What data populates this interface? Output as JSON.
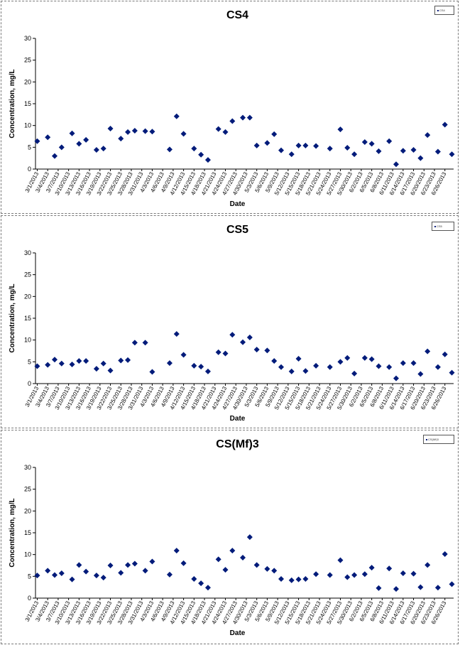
{
  "chart_data": [
    {
      "type": "scatter",
      "title": "CS4",
      "xlabel": "Date",
      "ylabel": "Concentration, mg/L",
      "ylim": [
        0,
        30
      ],
      "yticks": [
        "0",
        "5",
        "10",
        "15",
        "20",
        "25",
        "30"
      ],
      "xticks": [
        "3/1/2013",
        "3/4/2013",
        "3/7/2013",
        "3/10/2013",
        "3/13/2013",
        "3/16/2013",
        "3/19/2013",
        "3/22/2013",
        "3/25/2013",
        "3/28/2013",
        "3/31/2013",
        "4/3/2013",
        "4/6/2013",
        "4/9/2013",
        "4/12/2013",
        "4/15/2013",
        "4/18/2013",
        "4/21/2013",
        "4/24/2013",
        "4/27/2013",
        "4/30/2013",
        "5/3/2013",
        "5/6/2013",
        "5/9/2013",
        "5/12/2013",
        "5/15/2013",
        "5/18/2013",
        "5/21/2013",
        "5/24/2013",
        "5/27/2013",
        "5/30/2013",
        "6/2/2013",
        "6/5/2013",
        "6/8/2013",
        "6/11/2013",
        "6/14/2013",
        "6/17/2013",
        "6/20/2013",
        "6/23/2013",
        "6/26/2013"
      ],
      "legend": "CS4",
      "legend_position": "top-right",
      "grid": false,
      "marker_color": "#001b7a",
      "points": [
        [
          0,
          6.4
        ],
        [
          3,
          7.3
        ],
        [
          5,
          3.0
        ],
        [
          7,
          5.0
        ],
        [
          10,
          8.2
        ],
        [
          12,
          5.8
        ],
        [
          14,
          6.7
        ],
        [
          17,
          4.4
        ],
        [
          19,
          4.7
        ],
        [
          21,
          9.3
        ],
        [
          24,
          7.0
        ],
        [
          26,
          8.5
        ],
        [
          28,
          8.8
        ],
        [
          31,
          8.7
        ],
        [
          33,
          8.6
        ],
        [
          38,
          4.5
        ],
        [
          40,
          12.1
        ],
        [
          42,
          8.1
        ],
        [
          45,
          4.7
        ],
        [
          47,
          3.3
        ],
        [
          49,
          2.1
        ],
        [
          52,
          9.2
        ],
        [
          54,
          8.5
        ],
        [
          56,
          11.0
        ],
        [
          59,
          11.8
        ],
        [
          61,
          11.8
        ],
        [
          63,
          5.4
        ],
        [
          66,
          6.0
        ],
        [
          68,
          8.0
        ],
        [
          70,
          4.3
        ],
        [
          73,
          3.4
        ],
        [
          75,
          5.4
        ],
        [
          77,
          5.4
        ],
        [
          80,
          5.3
        ],
        [
          84,
          4.7
        ],
        [
          87,
          9.1
        ],
        [
          89,
          4.9
        ],
        [
          91,
          3.4
        ],
        [
          94,
          6.2
        ],
        [
          96,
          5.8
        ],
        [
          98,
          4.1
        ],
        [
          101,
          6.4
        ],
        [
          103,
          1.1
        ],
        [
          105,
          4.2
        ],
        [
          108,
          4.4
        ],
        [
          110,
          2.5
        ],
        [
          112,
          7.8
        ],
        [
          115,
          4.0
        ],
        [
          117,
          10.2
        ],
        [
          119,
          3.4
        ]
      ]
    },
    {
      "type": "scatter",
      "title": "CS5",
      "xlabel": "Date",
      "ylabel": "Concentration, mg/L",
      "ylim": [
        0,
        30
      ],
      "yticks": [
        "0",
        "5",
        "10",
        "15",
        "20",
        "25",
        "30"
      ],
      "xticks": [
        "3/1/2013",
        "3/4/2013",
        "3/7/2013",
        "3/10/2013",
        "3/13/2013",
        "3/16/2013",
        "3/19/2013",
        "3/22/2013",
        "3/25/2013",
        "3/28/2013",
        "3/31/2013",
        "4/3/2013",
        "4/6/2013",
        "4/9/2013",
        "4/12/2013",
        "4/15/2013",
        "4/18/2013",
        "4/21/2013",
        "4/24/2013",
        "4/27/2013",
        "4/30/2013",
        "5/3/2013",
        "5/6/2013",
        "5/9/2013",
        "5/12/2013",
        "5/15/2013",
        "5/18/2013",
        "5/21/2013",
        "5/24/2013",
        "5/27/2013",
        "5/30/2013",
        "6/2/2013",
        "6/5/2013",
        "6/8/2013",
        "6/11/2013",
        "6/14/2013",
        "6/17/2013",
        "6/20/2013",
        "6/23/2013",
        "6/26/2013"
      ],
      "legend": "CS5",
      "legend_position": "top-right",
      "grid": false,
      "marker_color": "#001b7a",
      "points": [
        [
          0,
          4.0
        ],
        [
          3,
          4.3
        ],
        [
          5,
          5.5
        ],
        [
          7,
          4.6
        ],
        [
          10,
          4.4
        ],
        [
          12,
          5.2
        ],
        [
          14,
          5.2
        ],
        [
          17,
          3.4
        ],
        [
          19,
          4.6
        ],
        [
          21,
          3.0
        ],
        [
          24,
          5.3
        ],
        [
          26,
          5.4
        ],
        [
          28,
          9.4
        ],
        [
          31,
          9.4
        ],
        [
          33,
          2.7
        ],
        [
          38,
          4.7
        ],
        [
          40,
          11.4
        ],
        [
          42,
          6.6
        ],
        [
          45,
          4.1
        ],
        [
          47,
          3.9
        ],
        [
          49,
          2.8
        ],
        [
          52,
          7.2
        ],
        [
          54,
          6.9
        ],
        [
          56,
          11.2
        ],
        [
          59,
          9.5
        ],
        [
          61,
          10.6
        ],
        [
          63,
          7.8
        ],
        [
          66,
          7.6
        ],
        [
          68,
          5.2
        ],
        [
          70,
          3.8
        ],
        [
          73,
          2.8
        ],
        [
          75,
          5.7
        ],
        [
          77,
          2.9
        ],
        [
          80,
          4.1
        ],
        [
          84,
          3.8
        ],
        [
          87,
          5.0
        ],
        [
          89,
          5.9
        ],
        [
          91,
          2.3
        ],
        [
          94,
          5.9
        ],
        [
          96,
          5.6
        ],
        [
          98,
          4.0
        ],
        [
          101,
          3.8
        ],
        [
          103,
          1.2
        ],
        [
          105,
          4.7
        ],
        [
          108,
          4.7
        ],
        [
          110,
          2.2
        ],
        [
          112,
          7.4
        ],
        [
          115,
          3.8
        ],
        [
          117,
          6.7
        ],
        [
          119,
          2.5
        ]
      ]
    },
    {
      "type": "scatter",
      "title": "CS(Mf)3",
      "xlabel": "Date",
      "ylabel": "Concentration, mg/L",
      "ylim": [
        0,
        30
      ],
      "yticks": [
        "0",
        "5",
        "10",
        "15",
        "20",
        "25",
        "30"
      ],
      "xticks": [
        "3/1/2013",
        "3/4/2013",
        "3/7/2013",
        "3/10/2013",
        "3/13/2013",
        "3/16/2013",
        "3/19/2013",
        "3/22/2013",
        "3/25/2013",
        "3/28/2013",
        "3/31/2013",
        "4/3/2013",
        "4/6/2013",
        "4/9/2013",
        "4/12/2013",
        "4/15/2013",
        "4/18/2013",
        "4/21/2013",
        "4/24/2013",
        "4/27/2013",
        "4/30/2013",
        "5/3/2013",
        "5/6/2013",
        "5/9/2013",
        "5/12/2013",
        "5/15/2013",
        "5/18/2013",
        "5/21/2013",
        "5/24/2013",
        "5/27/2013",
        "5/30/2013",
        "6/2/2013",
        "6/5/2013",
        "6/8/2013",
        "6/11/2013",
        "6/14/2013",
        "6/17/2013",
        "6/20/2013",
        "6/23/2013",
        "6/26/2013"
      ],
      "legend": "CS(Mf)3",
      "legend_position": "top-right",
      "grid": false,
      "marker_color": "#001b7a",
      "points": [
        [
          0,
          5.2
        ],
        [
          3,
          6.3
        ],
        [
          5,
          5.3
        ],
        [
          7,
          5.7
        ],
        [
          10,
          4.3
        ],
        [
          12,
          7.6
        ],
        [
          14,
          6.1
        ],
        [
          17,
          5.2
        ],
        [
          19,
          4.7
        ],
        [
          21,
          7.5
        ],
        [
          24,
          5.8
        ],
        [
          26,
          7.6
        ],
        [
          28,
          7.9
        ],
        [
          31,
          6.3
        ],
        [
          33,
          8.4
        ],
        [
          38,
          5.4
        ],
        [
          40,
          10.9
        ],
        [
          42,
          8.0
        ],
        [
          45,
          4.4
        ],
        [
          47,
          3.4
        ],
        [
          49,
          2.4
        ],
        [
          52,
          8.9
        ],
        [
          54,
          6.5
        ],
        [
          56,
          10.9
        ],
        [
          59,
          9.3
        ],
        [
          61,
          14.0
        ],
        [
          63,
          7.6
        ],
        [
          66,
          6.7
        ],
        [
          68,
          6.3
        ],
        [
          70,
          4.4
        ],
        [
          73,
          4.1
        ],
        [
          75,
          4.3
        ],
        [
          77,
          4.4
        ],
        [
          80,
          5.5
        ],
        [
          84,
          5.3
        ],
        [
          87,
          8.7
        ],
        [
          89,
          4.8
        ],
        [
          91,
          5.3
        ],
        [
          94,
          5.5
        ],
        [
          96,
          7.0
        ],
        [
          98,
          2.3
        ],
        [
          101,
          6.8
        ],
        [
          103,
          2.1
        ],
        [
          105,
          5.7
        ],
        [
          108,
          5.6
        ],
        [
          110,
          2.5
        ],
        [
          112,
          7.6
        ],
        [
          115,
          2.4
        ],
        [
          117,
          10.1
        ],
        [
          119,
          3.2
        ]
      ]
    }
  ]
}
